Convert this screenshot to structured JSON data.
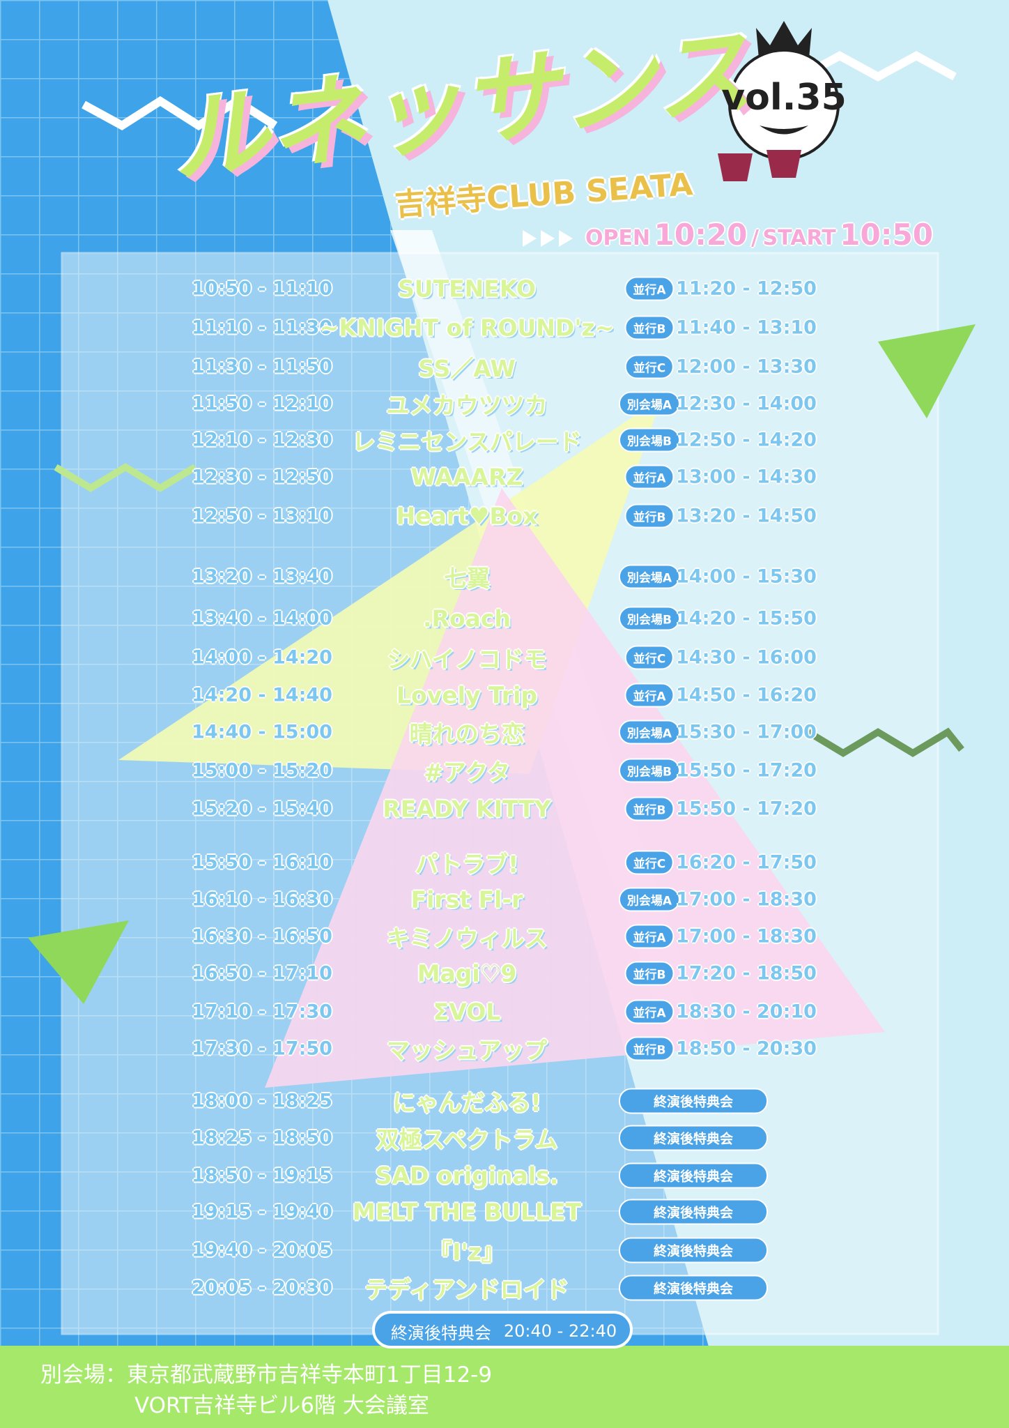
{
  "header": {
    "title": "ルネッサンス",
    "vol": "vol.35",
    "venue": "吉祥寺CLUB SEATA",
    "open_label": "OPEN",
    "open": "10:20",
    "separator": "/",
    "start_label": "START",
    "start": "10:50"
  },
  "timetable": {
    "rows": [
      {
        "time": "10:50 - 11:10",
        "artist": "SUTENEKO",
        "badge": "並行A",
        "sale": "11:20 - 12:50"
      },
      {
        "time": "11:10 - 11:30",
        "artist": "~KNIGHT of ROUND'z~",
        "badge": "並行B",
        "sale": "11:40 - 13:10"
      },
      {
        "time": "11:30 - 11:50",
        "artist": "SS／AW",
        "badge": "並行C",
        "sale": "12:00 - 13:30"
      },
      {
        "time": "11:50 - 12:10",
        "artist": "ユメカウツツカ",
        "badge": "別会場A",
        "sale": "12:30 - 14:00"
      },
      {
        "time": "12:10 - 12:30",
        "artist": "レミニセンスパレード",
        "badge": "別会場B",
        "sale": "12:50 - 14:20"
      },
      {
        "time": "12:30 - 12:50",
        "artist": "WAAARZ",
        "badge": "並行A",
        "sale": "13:00 - 14:30"
      },
      {
        "time": "12:50 - 13:10",
        "artist": "Heart♥Box",
        "badge": "並行B",
        "sale": "13:20 - 14:50"
      },
      {
        "time": "13:20 - 13:40",
        "artist": "七翼",
        "badge": "別会場A",
        "sale": "14:00 - 15:30"
      },
      {
        "time": "13:40 - 14:00",
        "artist": ".Roach",
        "badge": "別会場B",
        "sale": "14:20 - 15:50"
      },
      {
        "time": "14:00 - 14:20",
        "artist": "シハイノコドモ",
        "badge": "並行C",
        "sale": "14:30 - 16:00"
      },
      {
        "time": "14:20 - 14:40",
        "artist": "Lovely Trip",
        "badge": "並行A",
        "sale": "14:50 - 16:20"
      },
      {
        "time": "14:40 - 15:00",
        "artist": "晴れのち恋",
        "badge": "別会場A",
        "sale": "15:30 - 17:00"
      },
      {
        "time": "15:00 - 15:20",
        "artist": "#アクタ",
        "badge": "別会場B",
        "sale": "15:50 - 17:20"
      },
      {
        "time": "15:20 - 15:40",
        "artist": "READY KITTY",
        "badge": "並行B",
        "sale": "15:50 - 17:20"
      },
      {
        "time": "15:50 - 16:10",
        "artist": "パトラブ!",
        "badge": "並行C",
        "sale": "16:20 - 17:50"
      },
      {
        "time": "16:10 - 16:30",
        "artist": "First Fl-r",
        "badge": "別会場A",
        "sale": "17:00 - 18:30"
      },
      {
        "time": "16:30 - 16:50",
        "artist": "キミノウィルス",
        "badge": "並行A",
        "sale": "17:00 - 18:30"
      },
      {
        "time": "16:50 - 17:10",
        "artist": "Magi♡9",
        "badge": "並行B",
        "sale": "17:20 - 18:50"
      },
      {
        "time": "17:10 - 17:30",
        "artist": "ΣVOL",
        "badge": "並行A",
        "sale": "18:30 - 20:10"
      },
      {
        "time": "17:30 - 17:50",
        "artist": "マッシュアップ",
        "badge": "並行B",
        "sale": "18:50 - 20:30"
      },
      {
        "time": "18:00 - 18:25",
        "artist": "にゃんだふる!",
        "badge": "終演後特典会"
      },
      {
        "time": "18:25 - 18:50",
        "artist": "双極スペクトラム",
        "badge": "終演後特典会"
      },
      {
        "time": "18:50 - 19:15",
        "artist": "SAD originals.",
        "badge": "終演後特典会"
      },
      {
        "time": "19:15 - 19:40",
        "artist": "MELT THE BULLET",
        "badge": "終演後特典会"
      },
      {
        "time": "19:40 - 20:05",
        "artist": "『I'z』",
        "badge": "終演後特典会"
      },
      {
        "time": "20:05 - 20:30",
        "artist": "テディアンドロイド",
        "badge": "終演後特典会"
      }
    ],
    "final_label": "終演後特典会",
    "final_time": "20:40 - 22:40"
  },
  "footer": {
    "line1": "別会場：東京都武蔵野市吉祥寺本町1丁目12-9",
    "line2": "VORT吉祥寺ビル6階 大会議室"
  }
}
